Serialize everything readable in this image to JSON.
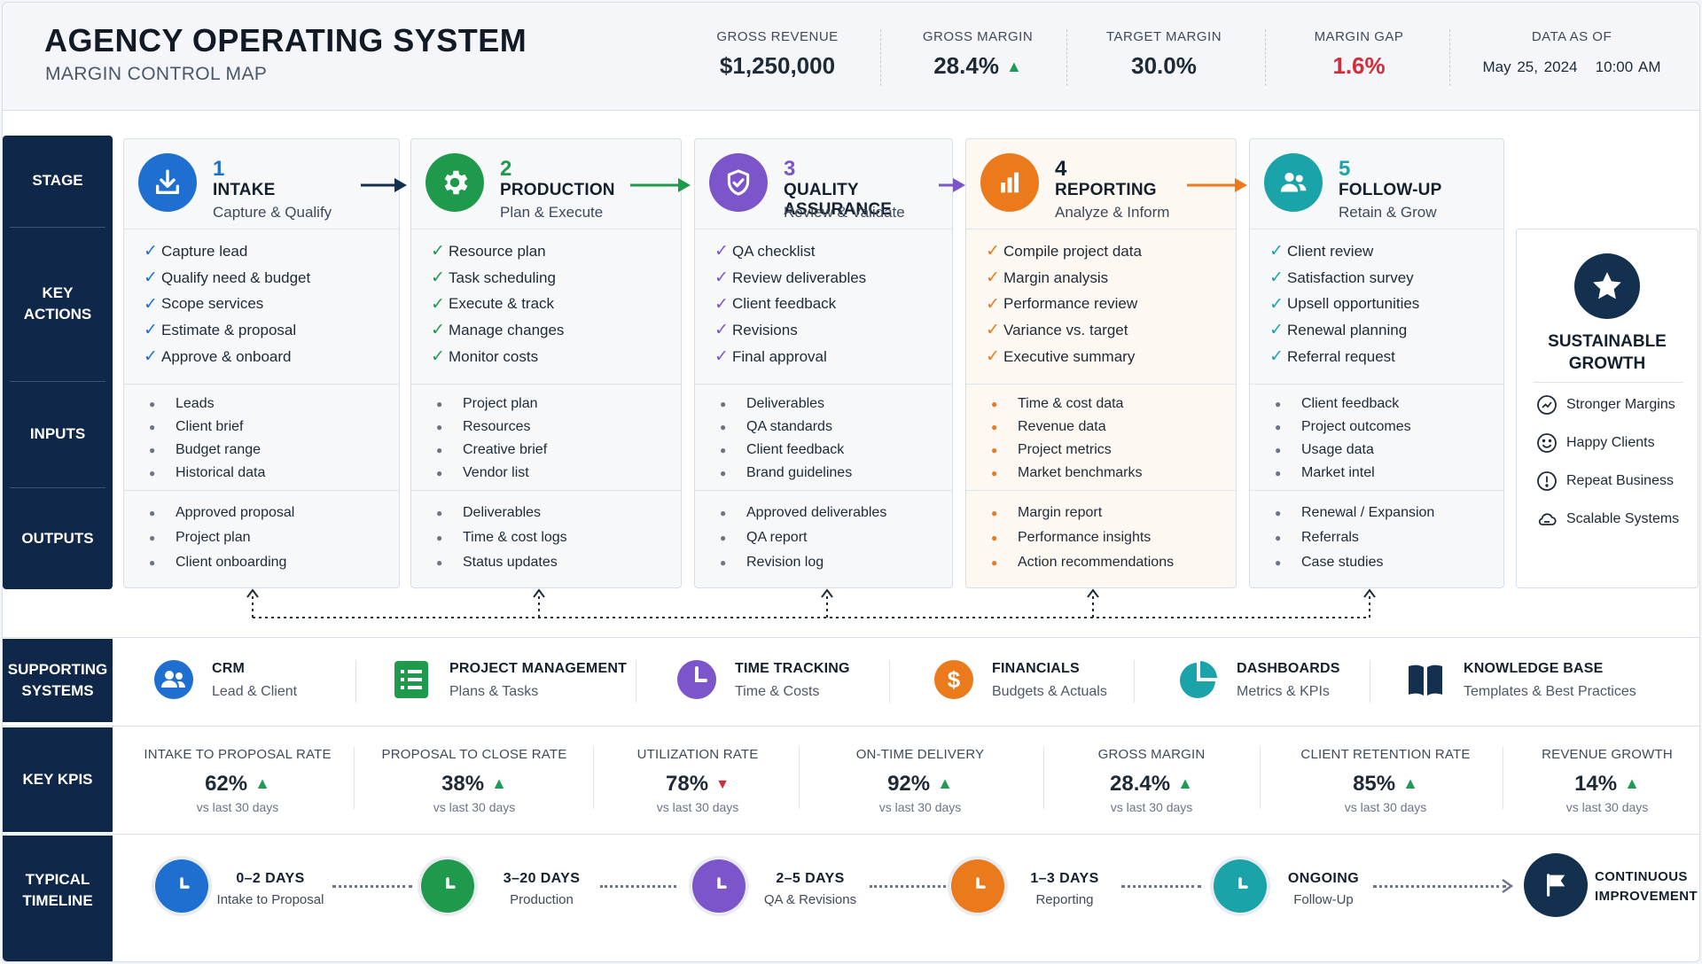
{
  "header": {
    "title": "AGENCY OPERATING SYSTEM",
    "subtitle": "MARGIN CONTROL MAP",
    "metrics": [
      {
        "label": "GROSS REVENUE",
        "value": "$1,250,000"
      },
      {
        "label": "GROSS MARGIN",
        "value": "28.4%",
        "trend": "up"
      },
      {
        "label": "TARGET MARGIN",
        "value": "30.0%"
      },
      {
        "label": "MARGIN GAP",
        "value": "1.6%",
        "color": "#d22d3a"
      },
      {
        "label": "DATA AS OF",
        "date": "May 25, 2024",
        "time": "10:00 AM"
      }
    ]
  },
  "rail": {
    "stage": "STAGE",
    "key_actions": "KEY ACTIONS",
    "inputs": "INPUTS",
    "outputs": "OUTPUTS",
    "supporting_systems": "SUPPORTING SYSTEMS",
    "key_kpis": "KEY KPIS",
    "typical_timeline": "TYPICAL TIMELINE"
  },
  "stages": [
    {
      "number": "1",
      "name": "INTAKE",
      "subtitle": "Capture & Qualify",
      "color": "#1f6fd1",
      "icon": "download-icon",
      "actions": [
        "Capture lead",
        "Qualify need & budget",
        "Scope services",
        "Estimate & proposal",
        "Approve & onboard"
      ],
      "inputs": [
        "Leads",
        "Client brief",
        "Budget range",
        "Historical data"
      ],
      "outputs": [
        "Approved proposal",
        "Project plan",
        "Client onboarding"
      ]
    },
    {
      "number": "2",
      "name": "PRODUCTION",
      "subtitle": "Plan & Execute",
      "color": "#1f9a4d",
      "icon": "gear-icon",
      "actions": [
        "Resource plan",
        "Task scheduling",
        "Execute & track",
        "Manage changes",
        "Monitor costs"
      ],
      "inputs": [
        "Project plan",
        "Resources",
        "Creative brief",
        "Vendor list"
      ],
      "outputs": [
        "Deliverables",
        "Time & cost logs",
        "Status updates"
      ]
    },
    {
      "number": "3",
      "name": "QUALITY ASSURANCE",
      "subtitle": "Review & Validate",
      "color": "#7b55c9",
      "icon": "shield-check-icon",
      "actions": [
        "QA checklist",
        "Review deliverables",
        "Client feedback",
        "Revisions",
        "Final approval"
      ],
      "inputs": [
        "Deliverables",
        "QA standards",
        "Client feedback",
        "Brand guidelines"
      ],
      "outputs": [
        "Approved deliverables",
        "QA report",
        "Revision log"
      ]
    },
    {
      "number": "4",
      "name": "REPORTING",
      "subtitle": "Analyze & Inform",
      "color": "#ea7a1c",
      "icon": "bar-chart-icon",
      "actions": [
        "Compile project data",
        "Margin analysis",
        "Performance review",
        "Variance vs. target",
        "Executive summary"
      ],
      "inputs": [
        "Time & cost data",
        "Revenue data",
        "Project metrics",
        "Market benchmarks"
      ],
      "outputs": [
        "Margin report",
        "Performance insights",
        "Action recommendations"
      ]
    },
    {
      "number": "5",
      "name": "FOLLOW-UP",
      "subtitle": "Retain & Grow",
      "color": "#1aa3a8",
      "icon": "users-icon",
      "actions": [
        "Client review",
        "Satisfaction survey",
        "Upsell opportunities",
        "Renewal planning",
        "Referral request"
      ],
      "inputs": [
        "Client feedback",
        "Project outcomes",
        "Usage data",
        "Market intel"
      ],
      "outputs": [
        "Renewal / Expansion",
        "Referrals",
        "Case studies"
      ]
    }
  ],
  "growth": {
    "title_line1": "SUSTAINABLE",
    "title_line2": "GROWTH",
    "items": [
      {
        "label": "Stronger Margins",
        "icon": "trend-icon"
      },
      {
        "label": "Happy Clients",
        "icon": "smile-icon"
      },
      {
        "label": "Repeat Business",
        "icon": "repeat-icon"
      },
      {
        "label": "Scalable Systems",
        "icon": "cloud-icon"
      }
    ]
  },
  "systems": [
    {
      "title": "CRM",
      "subtitle": "Lead & Client",
      "color": "#1f6fd1",
      "icon": "users-icon"
    },
    {
      "title": "PROJECT MANAGEMENT",
      "subtitle": "Plans & Tasks",
      "color": "#1f9a4d",
      "icon": "list-icon"
    },
    {
      "title": "TIME TRACKING",
      "subtitle": "Time & Costs",
      "color": "#7b55c9",
      "icon": "clock-icon"
    },
    {
      "title": "FINANCIALS",
      "subtitle": "Budgets & Actuals",
      "color": "#ea7a1c",
      "icon": "dollar-icon"
    },
    {
      "title": "DASHBOARDS",
      "subtitle": "Metrics & KPIs",
      "color": "#1aa3a8",
      "icon": "pie-icon"
    },
    {
      "title": "KNOWLEDGE BASE",
      "subtitle": "Templates & Best Practices",
      "color": "#14304f",
      "icon": "book-icon"
    }
  ],
  "kpis": [
    {
      "label": "INTAKE TO PROPOSAL RATE",
      "value": "62%",
      "trend": "up",
      "sub": "vs last 30 days"
    },
    {
      "label": "PROPOSAL TO CLOSE RATE",
      "value": "38%",
      "trend": "up",
      "sub": "vs last 30 days"
    },
    {
      "label": "UTILIZATION RATE",
      "value": "78%",
      "trend": "down",
      "sub": "vs last 30 days"
    },
    {
      "label": "ON-TIME DELIVERY",
      "value": "92%",
      "trend": "up",
      "sub": "vs last 30 days"
    },
    {
      "label": "GROSS MARGIN",
      "value": "28.4%",
      "trend": "up",
      "sub": "vs last 30 days"
    },
    {
      "label": "CLIENT RETENTION RATE",
      "value": "85%",
      "trend": "up",
      "sub": "vs last 30 days"
    },
    {
      "label": "REVENUE GROWTH",
      "value": "14%",
      "trend": "up",
      "sub": "vs last 30 days"
    }
  ],
  "timeline": [
    {
      "duration": "0–2 DAYS",
      "stage": "Intake to Proposal",
      "color": "#1f6fd1"
    },
    {
      "duration": "3–20 DAYS",
      "stage": "Production",
      "color": "#1f9a4d"
    },
    {
      "duration": "2–5 DAYS",
      "stage": "QA & Revisions",
      "color": "#7b55c9"
    },
    {
      "duration": "1–3 DAYS",
      "stage": "Reporting",
      "color": "#ea7a1c"
    },
    {
      "duration": "ONGOING",
      "stage": "Follow-Up",
      "color": "#1aa3a8"
    }
  ],
  "final": {
    "line1": "CONTINUOUS",
    "line2": "IMPROVEMENT",
    "icon": "flag-icon"
  }
}
